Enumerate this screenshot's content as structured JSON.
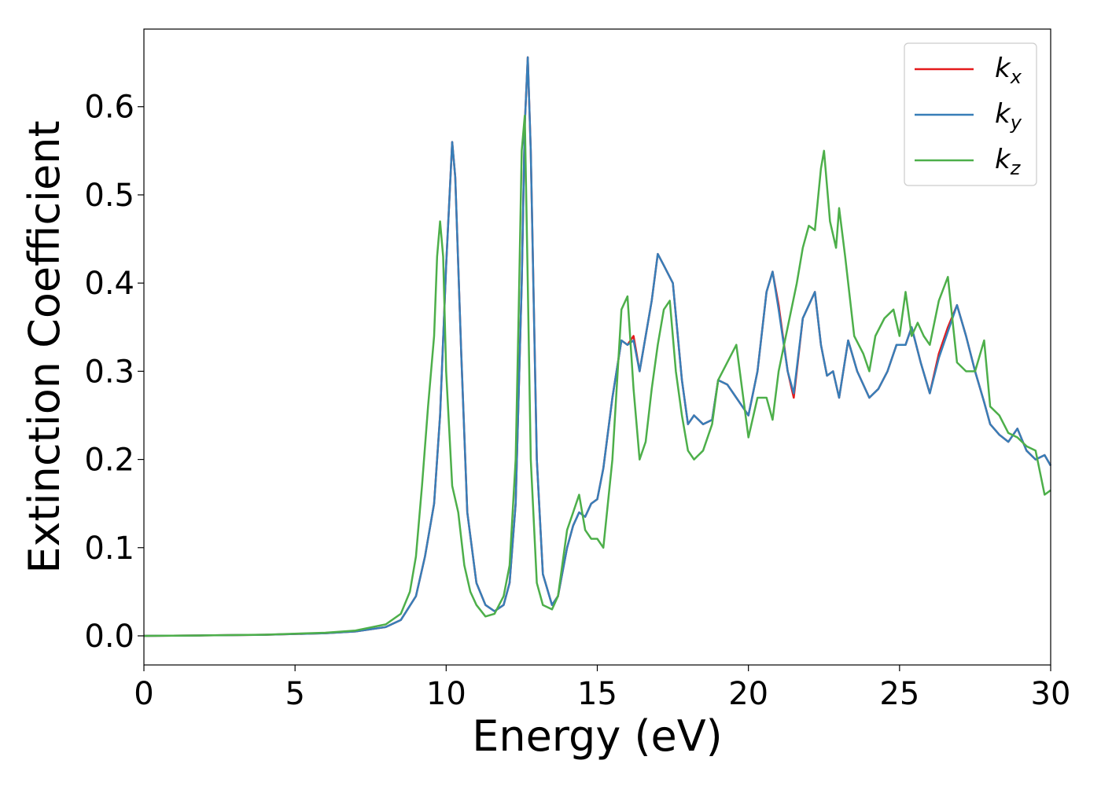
{
  "chart_data": {
    "type": "line",
    "title": "",
    "xlabel": "Energy (eV)",
    "ylabel": "Extinction Coefficient",
    "xlim": [
      0,
      30
    ],
    "ylim": [
      -0.033,
      0.688
    ],
    "xticks": [
      "0",
      "5",
      "10",
      "15",
      "20",
      "25",
      "30"
    ],
    "xtick_values": [
      0,
      5,
      10,
      15,
      20,
      25,
      30
    ],
    "yticks": [
      "0.0",
      "0.1",
      "0.2",
      "0.3",
      "0.4",
      "0.5",
      "0.6"
    ],
    "ytick_values": [
      0.0,
      0.1,
      0.2,
      0.3,
      0.4,
      0.5,
      0.6
    ],
    "grid": false,
    "legend_position": "top-right",
    "series": [
      {
        "name": "k",
        "subscript": "x",
        "color": "#e41a1c",
        "x": [
          0,
          2,
          4,
          6,
          7,
          8,
          8.5,
          9,
          9.3,
          9.6,
          9.8,
          10.0,
          10.2,
          10.3,
          10.5,
          10.7,
          11.0,
          11.3,
          11.6,
          11.9,
          12.1,
          12.3,
          12.5,
          12.6,
          12.7,
          12.8,
          13.0,
          13.2,
          13.5,
          13.7,
          14.0,
          14.2,
          14.4,
          14.6,
          14.8,
          15.0,
          15.2,
          15.5,
          15.8,
          16.0,
          16.2,
          16.4,
          16.6,
          16.8,
          17.0,
          17.2,
          17.5,
          17.8,
          18.0,
          18.2,
          18.5,
          18.8,
          19.0,
          19.3,
          19.6,
          20.0,
          20.3,
          20.6,
          20.8,
          21.0,
          21.3,
          21.5,
          21.8,
          22.0,
          22.2,
          22.4,
          22.6,
          22.8,
          23.0,
          23.3,
          23.6,
          24.0,
          24.3,
          24.6,
          24.9,
          25.2,
          25.4,
          25.7,
          26.0,
          26.3,
          26.6,
          26.9,
          27.2,
          27.5,
          27.8,
          28.0,
          28.3,
          28.6,
          28.9,
          29.2,
          29.5,
          29.8,
          30.0
        ],
        "y": [
          0,
          0.0005,
          0.0012,
          0.003,
          0.005,
          0.01,
          0.018,
          0.045,
          0.09,
          0.15,
          0.25,
          0.42,
          0.56,
          0.52,
          0.32,
          0.14,
          0.06,
          0.035,
          0.028,
          0.035,
          0.06,
          0.15,
          0.4,
          0.58,
          0.656,
          0.55,
          0.2,
          0.07,
          0.035,
          0.045,
          0.1,
          0.125,
          0.14,
          0.135,
          0.15,
          0.155,
          0.19,
          0.27,
          0.335,
          0.33,
          0.34,
          0.3,
          0.34,
          0.38,
          0.433,
          0.42,
          0.4,
          0.29,
          0.24,
          0.25,
          0.24,
          0.245,
          0.29,
          0.285,
          0.27,
          0.25,
          0.3,
          0.39,
          0.413,
          0.375,
          0.3,
          0.27,
          0.36,
          0.375,
          0.39,
          0.33,
          0.295,
          0.3,
          0.27,
          0.335,
          0.3,
          0.27,
          0.28,
          0.3,
          0.33,
          0.33,
          0.35,
          0.31,
          0.275,
          0.32,
          0.35,
          0.375,
          0.34,
          0.3,
          0.265,
          0.24,
          0.228,
          0.22,
          0.235,
          0.21,
          0.2,
          0.205,
          0.193
        ]
      },
      {
        "name": "k",
        "subscript": "y",
        "color": "#377eb8",
        "x": [
          0,
          2,
          4,
          6,
          7,
          8,
          8.5,
          9,
          9.3,
          9.6,
          9.8,
          10.0,
          10.2,
          10.3,
          10.5,
          10.7,
          11.0,
          11.3,
          11.6,
          11.9,
          12.1,
          12.3,
          12.5,
          12.6,
          12.7,
          12.8,
          13.0,
          13.2,
          13.5,
          13.7,
          14.0,
          14.2,
          14.4,
          14.6,
          14.8,
          15.0,
          15.2,
          15.5,
          15.8,
          16.0,
          16.2,
          16.4,
          16.6,
          16.8,
          17.0,
          17.2,
          17.5,
          17.8,
          18.0,
          18.2,
          18.5,
          18.8,
          19.0,
          19.3,
          19.6,
          20.0,
          20.3,
          20.6,
          20.8,
          21.0,
          21.3,
          21.5,
          21.8,
          22.0,
          22.2,
          22.4,
          22.6,
          22.8,
          23.0,
          23.3,
          23.6,
          24.0,
          24.3,
          24.6,
          24.9,
          25.2,
          25.4,
          25.7,
          26.0,
          26.3,
          26.6,
          26.9,
          27.2,
          27.5,
          27.8,
          28.0,
          28.3,
          28.6,
          28.9,
          29.2,
          29.5,
          29.8,
          30.0
        ],
        "y": [
          0,
          0.0005,
          0.0012,
          0.003,
          0.005,
          0.01,
          0.018,
          0.045,
          0.09,
          0.15,
          0.25,
          0.42,
          0.56,
          0.52,
          0.32,
          0.14,
          0.06,
          0.035,
          0.028,
          0.035,
          0.06,
          0.15,
          0.4,
          0.58,
          0.656,
          0.55,
          0.2,
          0.07,
          0.035,
          0.045,
          0.1,
          0.125,
          0.14,
          0.135,
          0.15,
          0.155,
          0.19,
          0.27,
          0.335,
          0.33,
          0.335,
          0.3,
          0.34,
          0.38,
          0.433,
          0.42,
          0.4,
          0.29,
          0.24,
          0.25,
          0.24,
          0.245,
          0.29,
          0.285,
          0.27,
          0.25,
          0.3,
          0.39,
          0.413,
          0.37,
          0.3,
          0.275,
          0.36,
          0.375,
          0.39,
          0.33,
          0.295,
          0.3,
          0.27,
          0.335,
          0.3,
          0.27,
          0.28,
          0.3,
          0.33,
          0.33,
          0.35,
          0.31,
          0.275,
          0.315,
          0.345,
          0.375,
          0.34,
          0.3,
          0.265,
          0.24,
          0.228,
          0.22,
          0.235,
          0.21,
          0.2,
          0.205,
          0.193
        ]
      },
      {
        "name": "k",
        "subscript": "z",
        "color": "#4daf4a",
        "x": [
          0,
          2,
          4,
          6,
          7,
          8,
          8.5,
          8.8,
          9.0,
          9.2,
          9.4,
          9.6,
          9.7,
          9.8,
          9.9,
          10.0,
          10.2,
          10.4,
          10.6,
          10.8,
          11.0,
          11.3,
          11.6,
          11.9,
          12.1,
          12.3,
          12.4,
          12.5,
          12.6,
          12.7,
          12.8,
          13.0,
          13.2,
          13.5,
          13.7,
          14.0,
          14.2,
          14.4,
          14.6,
          14.8,
          15.0,
          15.2,
          15.5,
          15.8,
          16.0,
          16.2,
          16.4,
          16.6,
          16.8,
          17.0,
          17.2,
          17.4,
          17.6,
          17.8,
          18.0,
          18.2,
          18.5,
          18.8,
          19.0,
          19.3,
          19.6,
          20.0,
          20.3,
          20.6,
          20.8,
          21.0,
          21.3,
          21.6,
          21.8,
          22.0,
          22.2,
          22.4,
          22.5,
          22.7,
          22.9,
          23.0,
          23.2,
          23.5,
          23.8,
          24.0,
          24.2,
          24.5,
          24.8,
          25.0,
          25.2,
          25.4,
          25.6,
          25.8,
          26.0,
          26.3,
          26.6,
          26.9,
          27.2,
          27.5,
          27.8,
          28.0,
          28.3,
          28.6,
          28.9,
          29.2,
          29.5,
          29.8,
          30.0
        ],
        "y": [
          0,
          0.0005,
          0.0013,
          0.0035,
          0.006,
          0.013,
          0.025,
          0.05,
          0.09,
          0.17,
          0.26,
          0.34,
          0.43,
          0.47,
          0.43,
          0.3,
          0.17,
          0.14,
          0.08,
          0.05,
          0.035,
          0.022,
          0.025,
          0.045,
          0.08,
          0.2,
          0.37,
          0.55,
          0.59,
          0.4,
          0.2,
          0.06,
          0.035,
          0.03,
          0.045,
          0.12,
          0.14,
          0.16,
          0.12,
          0.11,
          0.11,
          0.1,
          0.2,
          0.37,
          0.385,
          0.28,
          0.2,
          0.22,
          0.28,
          0.33,
          0.37,
          0.38,
          0.3,
          0.25,
          0.21,
          0.2,
          0.21,
          0.24,
          0.29,
          0.31,
          0.33,
          0.225,
          0.27,
          0.27,
          0.245,
          0.3,
          0.35,
          0.4,
          0.44,
          0.465,
          0.46,
          0.53,
          0.55,
          0.47,
          0.44,
          0.485,
          0.43,
          0.34,
          0.32,
          0.3,
          0.34,
          0.36,
          0.37,
          0.34,
          0.39,
          0.34,
          0.355,
          0.34,
          0.33,
          0.38,
          0.407,
          0.31,
          0.3,
          0.3,
          0.335,
          0.26,
          0.25,
          0.23,
          0.225,
          0.215,
          0.21,
          0.16,
          0.165
        ]
      }
    ]
  }
}
